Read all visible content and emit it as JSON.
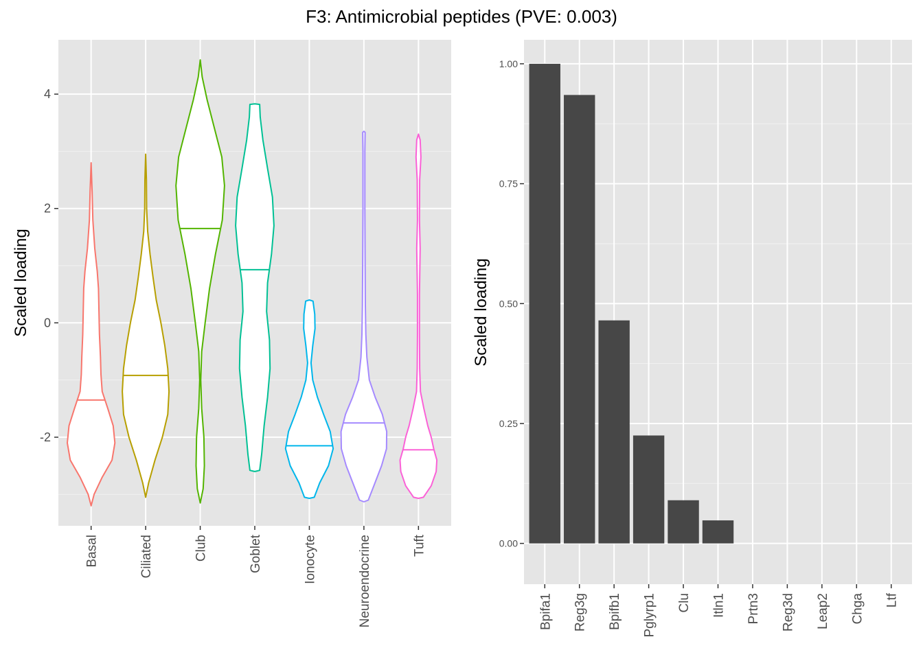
{
  "title": "F3: Antimicrobial peptides (PVE: 0.003)",
  "chart_data": [
    {
      "type": "violin",
      "ylabel": "Scaled loading",
      "xlabel": "",
      "ylim": [
        -3.55,
        4.95
      ],
      "y_ticks": [
        -2,
        0,
        2,
        4
      ],
      "y_tick_labels": [
        "-2",
        "0",
        "2",
        "4"
      ],
      "grid": true,
      "background": "#e5e5e5",
      "categories": [
        "Basal",
        "Ciliated",
        "Club",
        "Goblet",
        "Ionocyte",
        "Neuroendocrine",
        "Tuft"
      ],
      "series": [
        {
          "category": "Basal",
          "color": "#f8766d",
          "median": -1.35,
          "min": -3.2,
          "max": 2.8,
          "density": [
            [
              -3.2,
              0.0
            ],
            [
              -3.0,
              0.12
            ],
            [
              -2.7,
              0.45
            ],
            [
              -2.4,
              0.85
            ],
            [
              -2.1,
              0.97
            ],
            [
              -1.8,
              0.9
            ],
            [
              -1.5,
              0.68
            ],
            [
              -1.2,
              0.45
            ],
            [
              -0.9,
              0.4
            ],
            [
              -0.6,
              0.38
            ],
            [
              -0.2,
              0.34
            ],
            [
              0.2,
              0.32
            ],
            [
              0.6,
              0.3
            ],
            [
              0.9,
              0.25
            ],
            [
              1.3,
              0.15
            ],
            [
              1.8,
              0.07
            ],
            [
              2.3,
              0.04
            ],
            [
              2.8,
              0.0
            ]
          ]
        },
        {
          "category": "Ciliated",
          "color": "#b79f00",
          "median": -0.92,
          "min": -3.05,
          "max": 2.95,
          "density": [
            [
              -3.05,
              0.0
            ],
            [
              -2.8,
              0.12
            ],
            [
              -2.4,
              0.38
            ],
            [
              -2.0,
              0.68
            ],
            [
              -1.6,
              0.9
            ],
            [
              -1.2,
              0.95
            ],
            [
              -0.8,
              0.9
            ],
            [
              -0.4,
              0.78
            ],
            [
              0.0,
              0.62
            ],
            [
              0.4,
              0.43
            ],
            [
              0.8,
              0.3
            ],
            [
              1.2,
              0.18
            ],
            [
              1.6,
              0.08
            ],
            [
              2.0,
              0.04
            ],
            [
              2.5,
              0.03
            ],
            [
              2.95,
              0.0
            ]
          ]
        },
        {
          "category": "Club",
          "color": "#53b400",
          "median": 1.65,
          "min": -3.15,
          "max": 4.6,
          "density": [
            [
              -3.15,
              0.0
            ],
            [
              -2.9,
              0.12
            ],
            [
              -2.5,
              0.17
            ],
            [
              -2.0,
              0.15
            ],
            [
              -1.5,
              0.06
            ],
            [
              -1.0,
              0.02
            ],
            [
              -0.5,
              0.06
            ],
            [
              0.0,
              0.2
            ],
            [
              0.6,
              0.38
            ],
            [
              1.2,
              0.62
            ],
            [
              1.8,
              0.9
            ],
            [
              2.4,
              0.99
            ],
            [
              2.9,
              0.88
            ],
            [
              3.4,
              0.58
            ],
            [
              3.9,
              0.28
            ],
            [
              4.3,
              0.08
            ],
            [
              4.6,
              0.0
            ]
          ]
        },
        {
          "category": "Goblet",
          "color": "#00c094",
          "median": 0.93,
          "min": -2.6,
          "max": 3.83,
          "density": [
            [
              -2.6,
              0.0
            ],
            [
              -2.58,
              0.2
            ],
            [
              -2.3,
              0.28
            ],
            [
              -1.8,
              0.38
            ],
            [
              -1.3,
              0.52
            ],
            [
              -0.8,
              0.62
            ],
            [
              -0.3,
              0.6
            ],
            [
              0.2,
              0.48
            ],
            [
              0.7,
              0.52
            ],
            [
              1.2,
              0.68
            ],
            [
              1.7,
              0.78
            ],
            [
              2.2,
              0.72
            ],
            [
              2.7,
              0.52
            ],
            [
              3.2,
              0.33
            ],
            [
              3.6,
              0.22
            ],
            [
              3.82,
              0.2
            ],
            [
              3.83,
              0.0
            ]
          ]
        },
        {
          "category": "Ionocyte",
          "color": "#00b6eb",
          "median": -2.15,
          "min": -3.07,
          "max": 0.4,
          "density": [
            [
              -3.07,
              0.0
            ],
            [
              -3.05,
              0.2
            ],
            [
              -2.8,
              0.42
            ],
            [
              -2.5,
              0.78
            ],
            [
              -2.2,
              0.97
            ],
            [
              -1.9,
              0.85
            ],
            [
              -1.6,
              0.58
            ],
            [
              -1.3,
              0.33
            ],
            [
              -1.0,
              0.14
            ],
            [
              -0.7,
              0.07
            ],
            [
              -0.4,
              0.14
            ],
            [
              -0.1,
              0.23
            ],
            [
              0.15,
              0.22
            ],
            [
              0.38,
              0.15
            ],
            [
              0.4,
              0.0
            ]
          ]
        },
        {
          "category": "Neuroendocrine",
          "color": "#a58aff",
          "median": -1.75,
          "min": -3.13,
          "max": 3.35,
          "density": [
            [
              -3.13,
              0.0
            ],
            [
              -3.1,
              0.18
            ],
            [
              -2.8,
              0.45
            ],
            [
              -2.5,
              0.72
            ],
            [
              -2.2,
              0.92
            ],
            [
              -1.9,
              0.93
            ],
            [
              -1.6,
              0.75
            ],
            [
              -1.3,
              0.46
            ],
            [
              -1.0,
              0.22
            ],
            [
              -0.6,
              0.12
            ],
            [
              -0.2,
              0.08
            ],
            [
              0.3,
              0.06
            ],
            [
              1.0,
              0.05
            ],
            [
              2.0,
              0.04
            ],
            [
              3.0,
              0.04
            ],
            [
              3.33,
              0.05
            ],
            [
              3.35,
              0.0
            ]
          ]
        },
        {
          "category": "Tuft",
          "color": "#fb61d7",
          "median": -2.22,
          "min": -3.07,
          "max": 3.3,
          "density": [
            [
              -3.07,
              0.0
            ],
            [
              -3.05,
              0.2
            ],
            [
              -2.85,
              0.52
            ],
            [
              -2.6,
              0.72
            ],
            [
              -2.4,
              0.75
            ],
            [
              -2.2,
              0.62
            ],
            [
              -2.0,
              0.52
            ],
            [
              -1.8,
              0.38
            ],
            [
              -1.5,
              0.22
            ],
            [
              -1.2,
              0.08
            ],
            [
              -0.8,
              0.05
            ],
            [
              -0.2,
              0.04
            ],
            [
              0.5,
              0.04
            ],
            [
              1.3,
              0.07
            ],
            [
              1.8,
              0.04
            ],
            [
              2.5,
              0.05
            ],
            [
              2.9,
              0.1
            ],
            [
              3.2,
              0.07
            ],
            [
              3.3,
              0.0
            ]
          ]
        }
      ]
    },
    {
      "type": "bar",
      "ylabel": "Scaled loading",
      "xlabel": "",
      "ylim": [
        -0.085,
        1.05
      ],
      "y_ticks": [
        0,
        0.25,
        0.5,
        0.75,
        1.0
      ],
      "y_tick_labels": [
        "0.00",
        "0.25",
        "0.50",
        "0.75",
        "1.00"
      ],
      "grid": true,
      "background": "#e5e5e5",
      "bar_color": "#474747",
      "categories": [
        "Bpifa1",
        "Reg3g",
        "Bpifb1",
        "Pglyrp1",
        "Clu",
        "Itln1",
        "Prtn3",
        "Reg3d",
        "Leap2",
        "Chga",
        "Ltf"
      ],
      "values": [
        1.0,
        0.935,
        0.465,
        0.225,
        0.09,
        0.048,
        0.0,
        0.0,
        0.0,
        0.0,
        0.0
      ]
    }
  ]
}
